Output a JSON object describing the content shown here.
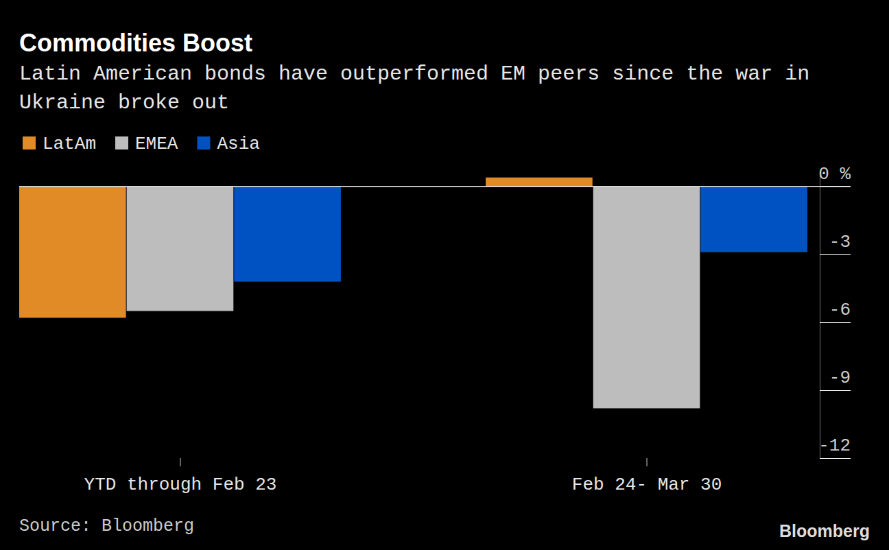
{
  "chart_data": {
    "type": "bar",
    "title": "Commodities Boost",
    "subtitle": "Latin American bonds have outperformed EM peers since the war in Ukraine broke out",
    "categories": [
      "YTD through Feb 23",
      "Feb 24- Mar 30"
    ],
    "series": [
      {
        "name": "LatAm",
        "color": "#e08b25",
        "values": [
          -5.8,
          0.4
        ]
      },
      {
        "name": "EMEA",
        "color": "#bdbdbd",
        "values": [
          -5.5,
          -9.8
        ]
      },
      {
        "name": "Asia",
        "color": "#0052c2",
        "values": [
          -4.2,
          -2.9
        ]
      }
    ],
    "ylim": [
      -12,
      0.5
    ],
    "yticks": [
      {
        "value": 0,
        "label": "0 %"
      },
      -3,
      -6,
      -9,
      -12
    ],
    "legend": "top-left",
    "source": "Source: Bloomberg",
    "credit": "Bloomberg"
  }
}
